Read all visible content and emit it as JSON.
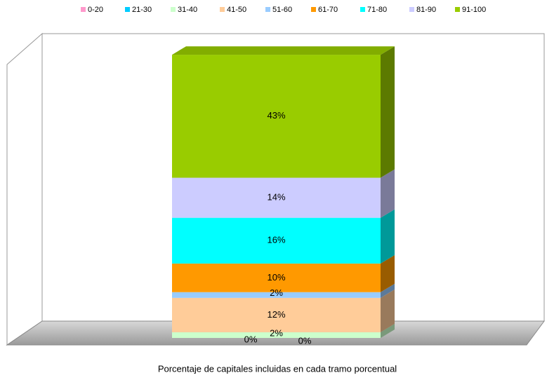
{
  "chart_data": {
    "type": "bar",
    "stacked": true,
    "categories": [
      "Porcentaje de capitales incluidas en cada tramo porcentual"
    ],
    "series": [
      {
        "name": "0-20",
        "color": "#ff99cc",
        "values": [
          0
        ],
        "value_labels": [
          "0%"
        ]
      },
      {
        "name": "21-30",
        "color": "#00ccff",
        "values": [
          0
        ],
        "value_labels": [
          "0%"
        ]
      },
      {
        "name": "31-40",
        "color": "#ccffcc",
        "values": [
          2
        ],
        "value_labels": [
          "2%"
        ]
      },
      {
        "name": "41-50",
        "color": "#ffcc99",
        "values": [
          12
        ],
        "value_labels": [
          "12%"
        ]
      },
      {
        "name": "51-60",
        "color": "#99ccff",
        "values": [
          2
        ],
        "value_labels": [
          "2%"
        ]
      },
      {
        "name": "61-70",
        "color": "#ff9900",
        "values": [
          10
        ],
        "value_labels": [
          "10%"
        ]
      },
      {
        "name": "71-80",
        "color": "#00ffff",
        "values": [
          16
        ],
        "value_labels": [
          "16%"
        ]
      },
      {
        "name": "81-90",
        "color": "#ccccff",
        "values": [
          14
        ],
        "value_labels": [
          "14%"
        ]
      },
      {
        "name": "91-100",
        "color": "#99cc00",
        "values": [
          43
        ],
        "value_labels": [
          "43%"
        ]
      }
    ],
    "legend": "top"
  }
}
